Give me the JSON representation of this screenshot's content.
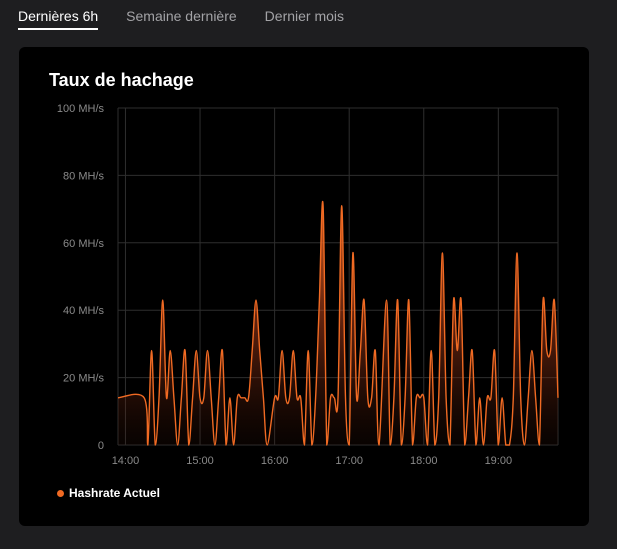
{
  "tabs": [
    {
      "label": "Dernières 6h",
      "active": true
    },
    {
      "label": "Semaine dernière",
      "active": false
    },
    {
      "label": "Dernier mois",
      "active": false
    }
  ],
  "card": {
    "title": "Taux de hachage",
    "legend_label": "Hashrate Actuel"
  },
  "colors": {
    "series": "#f06a23",
    "grid": "#2e2e2e",
    "tick": "#8a8a8a",
    "background": "#000000",
    "page": "#1e1e20"
  },
  "chart_data": {
    "type": "area",
    "title": "Taux de hachage",
    "xlabel": "",
    "ylabel": "",
    "ylim": [
      0,
      100
    ],
    "y_unit": "MH/s",
    "y_ticks": [
      {
        "value": 0,
        "label": "0"
      },
      {
        "value": 20,
        "label": "20 MH/s"
      },
      {
        "value": 40,
        "label": "40 MH/s"
      },
      {
        "value": 60,
        "label": "60 MH/s"
      },
      {
        "value": 80,
        "label": "80 MH/s"
      },
      {
        "value": 100,
        "label": "100 MH/s"
      }
    ],
    "x_range": [
      "13:54",
      "19:48"
    ],
    "x_ticks": [
      "14:00",
      "15:00",
      "16:00",
      "17:00",
      "18:00",
      "19:00"
    ],
    "grid": true,
    "legend_position": "bottom-left",
    "series": [
      {
        "name": "Hashrate Actuel",
        "x": [
          "13:54",
          "14:15",
          "14:18",
          "14:21",
          "14:24",
          "14:27",
          "14:30",
          "14:33",
          "14:36",
          "14:39",
          "14:42",
          "14:45",
          "14:48",
          "14:51",
          "14:54",
          "14:57",
          "15:00",
          "15:03",
          "15:06",
          "15:09",
          "15:12",
          "15:15",
          "15:18",
          "15:21",
          "15:24",
          "15:27",
          "15:30",
          "15:33",
          "15:36",
          "15:39",
          "15:42",
          "15:45",
          "15:48",
          "15:51",
          "15:54",
          "16:00",
          "16:03",
          "16:06",
          "16:09",
          "16:12",
          "16:15",
          "16:18",
          "16:21",
          "16:24",
          "16:27",
          "16:30",
          "16:33",
          "16:36",
          "16:39",
          "16:42",
          "16:45",
          "16:48",
          "16:51",
          "16:54",
          "16:57",
          "17:00",
          "17:03",
          "17:06",
          "17:09",
          "17:12",
          "17:15",
          "17:18",
          "17:21",
          "17:24",
          "17:30",
          "17:33",
          "17:36",
          "17:39",
          "17:42",
          "17:45",
          "17:48",
          "17:51",
          "17:54",
          "17:57",
          "18:00",
          "18:03",
          "18:06",
          "18:09",
          "18:12",
          "18:15",
          "18:18",
          "18:21",
          "18:24",
          "18:27",
          "18:30",
          "18:33",
          "18:36",
          "18:39",
          "18:42",
          "18:45",
          "18:48",
          "18:51",
          "18:54",
          "18:57",
          "19:00",
          "19:03",
          "19:06",
          "19:09",
          "19:12",
          "19:15",
          "19:18",
          "19:21",
          "19:24",
          "19:27",
          "19:30",
          "19:33",
          "19:36",
          "19:39",
          "19:42",
          "19:45",
          "19:48"
        ],
        "values": [
          14,
          14,
          0,
          28,
          0,
          14,
          43,
          14,
          28,
          14,
          0,
          14,
          28,
          0,
          14,
          28,
          14,
          14,
          28,
          14,
          0,
          14,
          28,
          0,
          14,
          0,
          14,
          14,
          14,
          14,
          28,
          43,
          28,
          14,
          0,
          14,
          14,
          28,
          14,
          14,
          28,
          14,
          14,
          0,
          28,
          0,
          14,
          43,
          71,
          0,
          14,
          14,
          14,
          71,
          14,
          0,
          57,
          14,
          28,
          43,
          14,
          14,
          28,
          0,
          43,
          0,
          14,
          43,
          0,
          14,
          43,
          0,
          14,
          14,
          14,
          0,
          28,
          0,
          14,
          57,
          14,
          0,
          43,
          28,
          43,
          0,
          14,
          28,
          0,
          14,
          0,
          14,
          14,
          28,
          0,
          14,
          0,
          0,
          14,
          57,
          14,
          0,
          14,
          28,
          14,
          0,
          43,
          28,
          28,
          43,
          14
        ]
      }
    ]
  }
}
